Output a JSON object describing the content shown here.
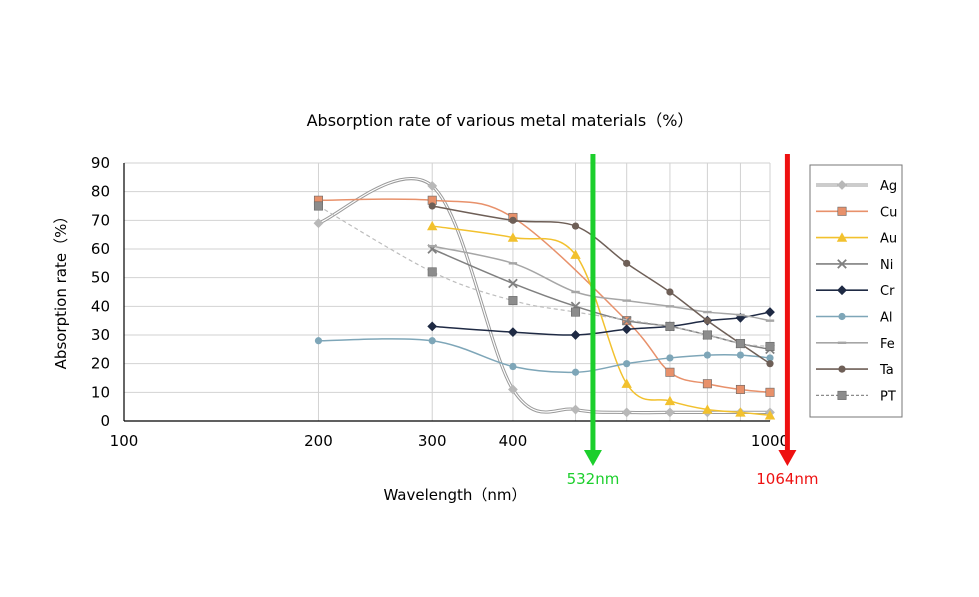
{
  "chart_data": {
    "type": "line",
    "title": "Absorption rate of various metal materials（%）",
    "xlabel": "Wavelength（nm）",
    "ylabel": "Absorption rate（%）",
    "x_scale": "log",
    "xlim": [
      100,
      1000
    ],
    "ylim": [
      0,
      90
    ],
    "x_ticks": [
      100,
      200,
      300,
      400,
      1000
    ],
    "x_tick_labels": [
      "100",
      "200",
      "300",
      "400",
      "1000"
    ],
    "y_ticks": [
      0,
      10,
      20,
      30,
      40,
      50,
      60,
      70,
      80,
      90
    ],
    "y_tick_labels": [
      "0",
      "10",
      "20",
      "30",
      "40",
      "50",
      "60",
      "70",
      "80",
      "90"
    ],
    "grid": true,
    "legend_position": "right",
    "series": [
      {
        "name": "Ag",
        "color": "#b8b8b8",
        "marker": "diamond",
        "style": "double",
        "x": [
          200,
          300,
          400,
          500,
          600,
          700,
          800,
          900,
          1000
        ],
        "y": [
          69,
          82,
          11,
          4,
          3,
          3,
          3,
          3,
          3
        ]
      },
      {
        "name": "Cu",
        "color": "#e8916b",
        "marker": "square",
        "style": "solid",
        "x": [
          200,
          300,
          400,
          600,
          700,
          800,
          900,
          1000
        ],
        "y": [
          77,
          77,
          71,
          35,
          17,
          13,
          11,
          10
        ]
      },
      {
        "name": "Au",
        "color": "#f2c12e",
        "marker": "triangle",
        "style": "solid",
        "x": [
          300,
          400,
          500,
          600,
          700,
          800,
          900,
          1000
        ],
        "y": [
          68,
          64,
          58,
          13,
          7,
          4,
          3,
          2
        ]
      },
      {
        "name": "Ni",
        "color": "#808080",
        "marker": "x",
        "style": "solid",
        "x": [
          300,
          400,
          500,
          600,
          700,
          800,
          900,
          1000
        ],
        "y": [
          60,
          48,
          40,
          35,
          33,
          30,
          27,
          25
        ]
      },
      {
        "name": "Cr",
        "color": "#1f2a44",
        "marker": "diamond",
        "style": "solid",
        "x": [
          300,
          400,
          500,
          600,
          700,
          800,
          900,
          1000
        ],
        "y": [
          33,
          31,
          30,
          32,
          33,
          35,
          36,
          38
        ]
      },
      {
        "name": "Al",
        "color": "#7ea6b8",
        "marker": "circle",
        "style": "solid",
        "x": [
          200,
          300,
          400,
          500,
          600,
          700,
          800,
          900,
          1000
        ],
        "y": [
          28,
          28,
          19,
          17,
          20,
          22,
          23,
          23,
          22
        ]
      },
      {
        "name": "Fe",
        "color": "#a6a6a6",
        "marker": "dash",
        "style": "solid",
        "x": [
          300,
          400,
          500,
          600,
          700,
          800,
          900,
          1000
        ],
        "y": [
          61,
          55,
          45,
          42,
          40,
          38,
          37,
          35
        ]
      },
      {
        "name": "Ta",
        "color": "#6e5f57",
        "marker": "circle",
        "style": "solid",
        "x": [
          300,
          400,
          500,
          600,
          700,
          800,
          900,
          1000
        ],
        "y": [
          75,
          70,
          68,
          55,
          45,
          35,
          27,
          20
        ]
      },
      {
        "name": "PT",
        "color": "#8c8c8c",
        "marker": "square",
        "style": "dashed",
        "x": [
          200,
          300,
          400,
          500,
          700,
          800,
          900,
          1000
        ],
        "y": [
          75,
          52,
          42,
          38,
          33,
          30,
          27,
          26
        ]
      }
    ],
    "annotations": [
      {
        "x": 532,
        "label": "532nm",
        "color": "#1ccf2c"
      },
      {
        "x": 1064,
        "label": "1064nm",
        "color": "#ee1111"
      }
    ]
  }
}
